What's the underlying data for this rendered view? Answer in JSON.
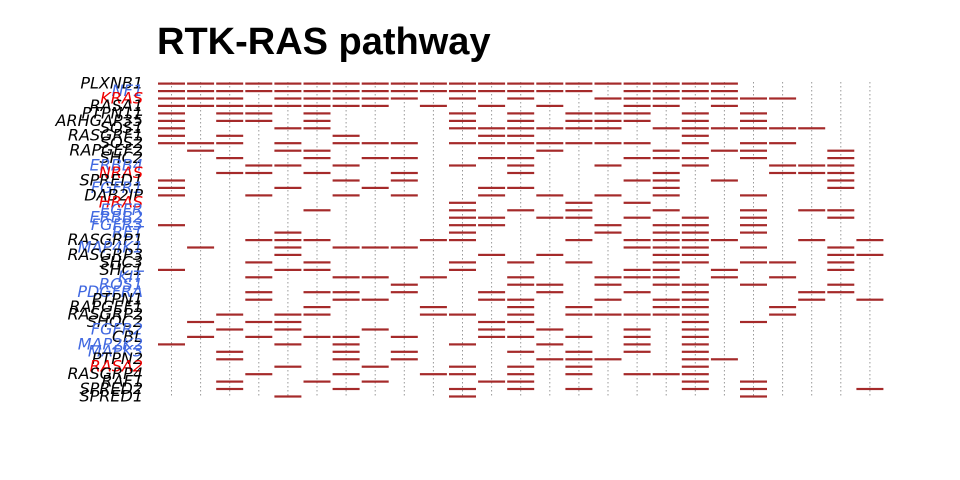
{
  "title": "RTK-RAS pathway",
  "chart_data": {
    "type": "heatmap",
    "title": "RTK-RAS pathway",
    "xlabel": "",
    "ylabel": "",
    "samples": 25,
    "grid": true,
    "colors": {
      "mutation": "#a52a2a",
      "grid": "#999999",
      "label_default": "#000000",
      "label_blue": "#4169e1",
      "label_red": "#ee0000"
    },
    "genes": [
      {
        "name": "PLXNB1",
        "color": "black"
      },
      {
        "name": "NF1",
        "color": "blue"
      },
      {
        "name": "KRAS",
        "color": "red"
      },
      {
        "name": "RASA1",
        "color": "black"
      },
      {
        "name": "PTPN11",
        "color": "black"
      },
      {
        "name": "ARHGAP35",
        "color": "black"
      },
      {
        "name": "SOS1",
        "color": "black"
      },
      {
        "name": "RASGRF1",
        "color": "black"
      },
      {
        "name": "SOS2",
        "color": "black"
      },
      {
        "name": "RAPGEF2",
        "color": "black"
      },
      {
        "name": "SHC2",
        "color": "black"
      },
      {
        "name": "ERBB4",
        "color": "blue"
      },
      {
        "name": "NRAS",
        "color": "red"
      },
      {
        "name": "SPRED1",
        "color": "black"
      },
      {
        "name": "FGFR1",
        "color": "blue"
      },
      {
        "name": "DAB2IP",
        "color": "black"
      },
      {
        "name": "HRAS",
        "color": "red"
      },
      {
        "name": "EGFR",
        "color": "blue"
      },
      {
        "name": "ERBB2",
        "color": "blue"
      },
      {
        "name": "FGFR3",
        "color": "blue"
      },
      {
        "name": "RET",
        "color": "blue"
      },
      {
        "name": "RASGRP1",
        "color": "black"
      },
      {
        "name": "MAP4K1",
        "color": "blue"
      },
      {
        "name": "RASGRP3",
        "color": "black"
      },
      {
        "name": "SHC3",
        "color": "black"
      },
      {
        "name": "SHC1",
        "color": "black"
      },
      {
        "name": "KIT",
        "color": "blue"
      },
      {
        "name": "ROS1",
        "color": "blue"
      },
      {
        "name": "PDGFRA",
        "color": "blue"
      },
      {
        "name": "PTPN1",
        "color": "black"
      },
      {
        "name": "RAPGEF1",
        "color": "black"
      },
      {
        "name": "RASGRP2",
        "color": "black"
      },
      {
        "name": "SHOC2",
        "color": "black"
      },
      {
        "name": "FGFR2",
        "color": "blue"
      },
      {
        "name": "CBL",
        "color": "black"
      },
      {
        "name": "MAP2K2",
        "color": "blue"
      },
      {
        "name": "MAPK3",
        "color": "blue"
      },
      {
        "name": "PTPN2",
        "color": "black"
      },
      {
        "name": "RASA2",
        "color": "red"
      },
      {
        "name": "RASGRP4",
        "color": "black"
      },
      {
        "name": "RAF1",
        "color": "black"
      },
      {
        "name": "SPRED2",
        "color": "black"
      },
      {
        "name": "SPRED1",
        "color": "black"
      }
    ],
    "mutations": [
      [
        0,
        1,
        2,
        3,
        4,
        5,
        6,
        7,
        8,
        9,
        10,
        11,
        12,
        13,
        14,
        15,
        16,
        17,
        18,
        19
      ],
      [
        0,
        1,
        2,
        3,
        4,
        5,
        6,
        7,
        8,
        9,
        10,
        11,
        12,
        13,
        14,
        16,
        17,
        18,
        19
      ],
      [
        0,
        1,
        2,
        4,
        5,
        6,
        7,
        8,
        10,
        12,
        15,
        16,
        17,
        18,
        19,
        20,
        21
      ],
      [
        0,
        1,
        2,
        3,
        4,
        5,
        6,
        7,
        9,
        11,
        13,
        16,
        17,
        19
      ],
      [
        0,
        2,
        3,
        5,
        10,
        12,
        14,
        15,
        16,
        18,
        20
      ],
      [
        0,
        2,
        3,
        5,
        10,
        12,
        14,
        15,
        16,
        18,
        20
      ],
      [
        0,
        4,
        5,
        10,
        11,
        12,
        13,
        14,
        15,
        17,
        18,
        19,
        20,
        21,
        22
      ],
      [
        0,
        2,
        6,
        11,
        12,
        18
      ],
      [
        0,
        1,
        2,
        4,
        6,
        7,
        8,
        10,
        11,
        12,
        13,
        14,
        15,
        16,
        18,
        20,
        21
      ],
      [
        1,
        4,
        5,
        13,
        17,
        19,
        20,
        23
      ],
      [
        2,
        5,
        7,
        8,
        11,
        12,
        16,
        17,
        18,
        20,
        23
      ],
      [
        3,
        4,
        6,
        10,
        12,
        15,
        18,
        21,
        22,
        23
      ],
      [
        2,
        3,
        5,
        8,
        12,
        17,
        21,
        22,
        23
      ],
      [
        0,
        6,
        8,
        16,
        17,
        19,
        23
      ],
      [
        0,
        4,
        7,
        11,
        12,
        17,
        23
      ],
      [
        0,
        3,
        6,
        8,
        11,
        13,
        15,
        17,
        20
      ],
      [
        10,
        14,
        16
      ],
      [
        5,
        10,
        12,
        14,
        17,
        20,
        22,
        23
      ],
      [
        10,
        11,
        13,
        14,
        16,
        18,
        20,
        23
      ],
      [
        0,
        10,
        11,
        15,
        17,
        18,
        20
      ],
      [
        4,
        10,
        15,
        17,
        18,
        20
      ],
      [
        3,
        4,
        5,
        9,
        10,
        14,
        16,
        17,
        18,
        19,
        22,
        24
      ],
      [
        1,
        4,
        6,
        7,
        8,
        16,
        17,
        18,
        20,
        23
      ],
      [
        4,
        11,
        13,
        17,
        18,
        23,
        24
      ],
      [
        3,
        5,
        10,
        12,
        14,
        17,
        18,
        20,
        21,
        23
      ],
      [
        0,
        4,
        5,
        10,
        16,
        17,
        19,
        23
      ],
      [
        3,
        6,
        7,
        9,
        12,
        15,
        16,
        17,
        19,
        21
      ],
      [
        8,
        12,
        13,
        15,
        17,
        18,
        20,
        23
      ],
      [
        3,
        5,
        6,
        8,
        11,
        13,
        16,
        18,
        22,
        23
      ],
      [
        3,
        6,
        7,
        11,
        12,
        15,
        17,
        18,
        22,
        24
      ],
      [
        5,
        9,
        12,
        14,
        17,
        18,
        21
      ],
      [
        2,
        4,
        5,
        9,
        10,
        12,
        14,
        15,
        16,
        17,
        18,
        21
      ],
      [
        1,
        3,
        4,
        11,
        12,
        18,
        20
      ],
      [
        2,
        4,
        7,
        11,
        13,
        16,
        18
      ],
      [
        1,
        3,
        5,
        6,
        8,
        11,
        12,
        14,
        16,
        18
      ],
      [
        0,
        4,
        6,
        10,
        13,
        16,
        18
      ],
      [
        2,
        6,
        8,
        12,
        14,
        16,
        18
      ],
      [
        2,
        6,
        8,
        13,
        14,
        15,
        18,
        19
      ],
      [
        4,
        7,
        10,
        12,
        14,
        18
      ],
      [
        3,
        6,
        9,
        10,
        12,
        14,
        16,
        17,
        18
      ],
      [
        2,
        5,
        7,
        11,
        12,
        18,
        20
      ],
      [
        2,
        6,
        10,
        12,
        14,
        18,
        20,
        24
      ],
      [
        4,
        10,
        20
      ]
    ]
  }
}
